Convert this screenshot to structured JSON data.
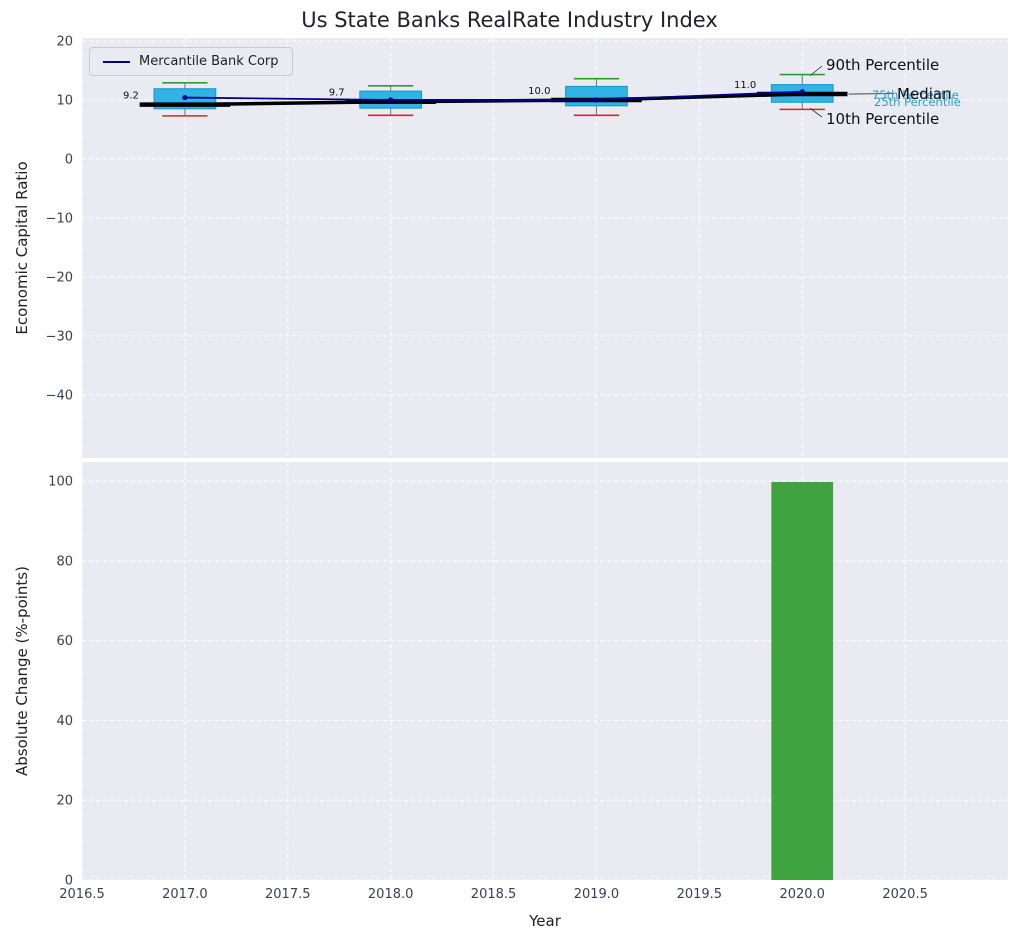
{
  "chart_data": [
    {
      "type": "boxplot_with_line",
      "title": "Us State Banks RealRate Industry Index",
      "ylabel": "Economic Capital Ratio",
      "ylim": [
        -50.7,
        20.5
      ],
      "yticks": [
        20,
        10,
        0,
        -10,
        -20,
        -30,
        -40
      ],
      "ytick_labels": [
        "20",
        "10",
        "0",
        "−10",
        "−20",
        "−30",
        "−40"
      ],
      "xlim": [
        2016.5,
        2021.0
      ],
      "grid": true,
      "legend_position": "upper left",
      "years": [
        2017,
        2018,
        2019,
        2020
      ],
      "boxes": {
        "median": [
          9.2,
          9.7,
          10.0,
          11.0
        ],
        "median_labels": [
          "9.2",
          "9.7",
          "10.0",
          "11.0"
        ],
        "q1": [
          8.5,
          8.6,
          9.0,
          9.6
        ],
        "q3": [
          11.9,
          11.5,
          12.3,
          12.6
        ],
        "p10": [
          7.3,
          7.4,
          7.4,
          8.4
        ],
        "p90": [
          12.9,
          12.4,
          13.6,
          14.3
        ]
      },
      "series": [
        {
          "name": "Mercantile Bank Corp",
          "values": [
            10.4,
            10.0,
            10.0,
            11.4
          ],
          "color": "#00008b"
        }
      ],
      "colors": {
        "box_fill": "#30b4e6",
        "box_edge": "#1d94c4",
        "median": "#000000",
        "whisker": "#777777",
        "cap_top": "#2ca02c",
        "cap_bottom": "#d62728",
        "axes_background": "#eaeaf2",
        "grid": "#ffffff"
      },
      "annotations": [
        {
          "text": "90th Percentile",
          "color": "#111111"
        },
        {
          "text": "Median",
          "color": "#111111"
        },
        {
          "text": "10th Percentile",
          "color": "#111111"
        },
        {
          "text": "75th Percentile",
          "color": "#2b9fc7"
        },
        {
          "text": "25th Percentile",
          "color": "#2b9fc7"
        }
      ]
    },
    {
      "type": "bar",
      "ylabel": "Absolute Change (%-points)",
      "xlabel": "Year",
      "ylim": [
        0,
        104.8
      ],
      "yticks": [
        0,
        20,
        40,
        60,
        80,
        100
      ],
      "ytick_labels": [
        "0",
        "20",
        "40",
        "60",
        "80",
        "100"
      ],
      "xlim": [
        2016.5,
        2021.0
      ],
      "xticks": [
        2016.5,
        2017.0,
        2017.5,
        2018.0,
        2018.5,
        2019.0,
        2019.5,
        2020.0,
        2020.5
      ],
      "xtick_labels": [
        "2016.5",
        "2017.0",
        "2017.5",
        "2018.0",
        "2018.5",
        "2019.0",
        "2019.5",
        "2020.0",
        "2020.5"
      ],
      "grid": true,
      "x": [
        2020
      ],
      "values": [
        99.8
      ],
      "bar_width": 0.3,
      "bar_color": "#3fa33f"
    }
  ]
}
